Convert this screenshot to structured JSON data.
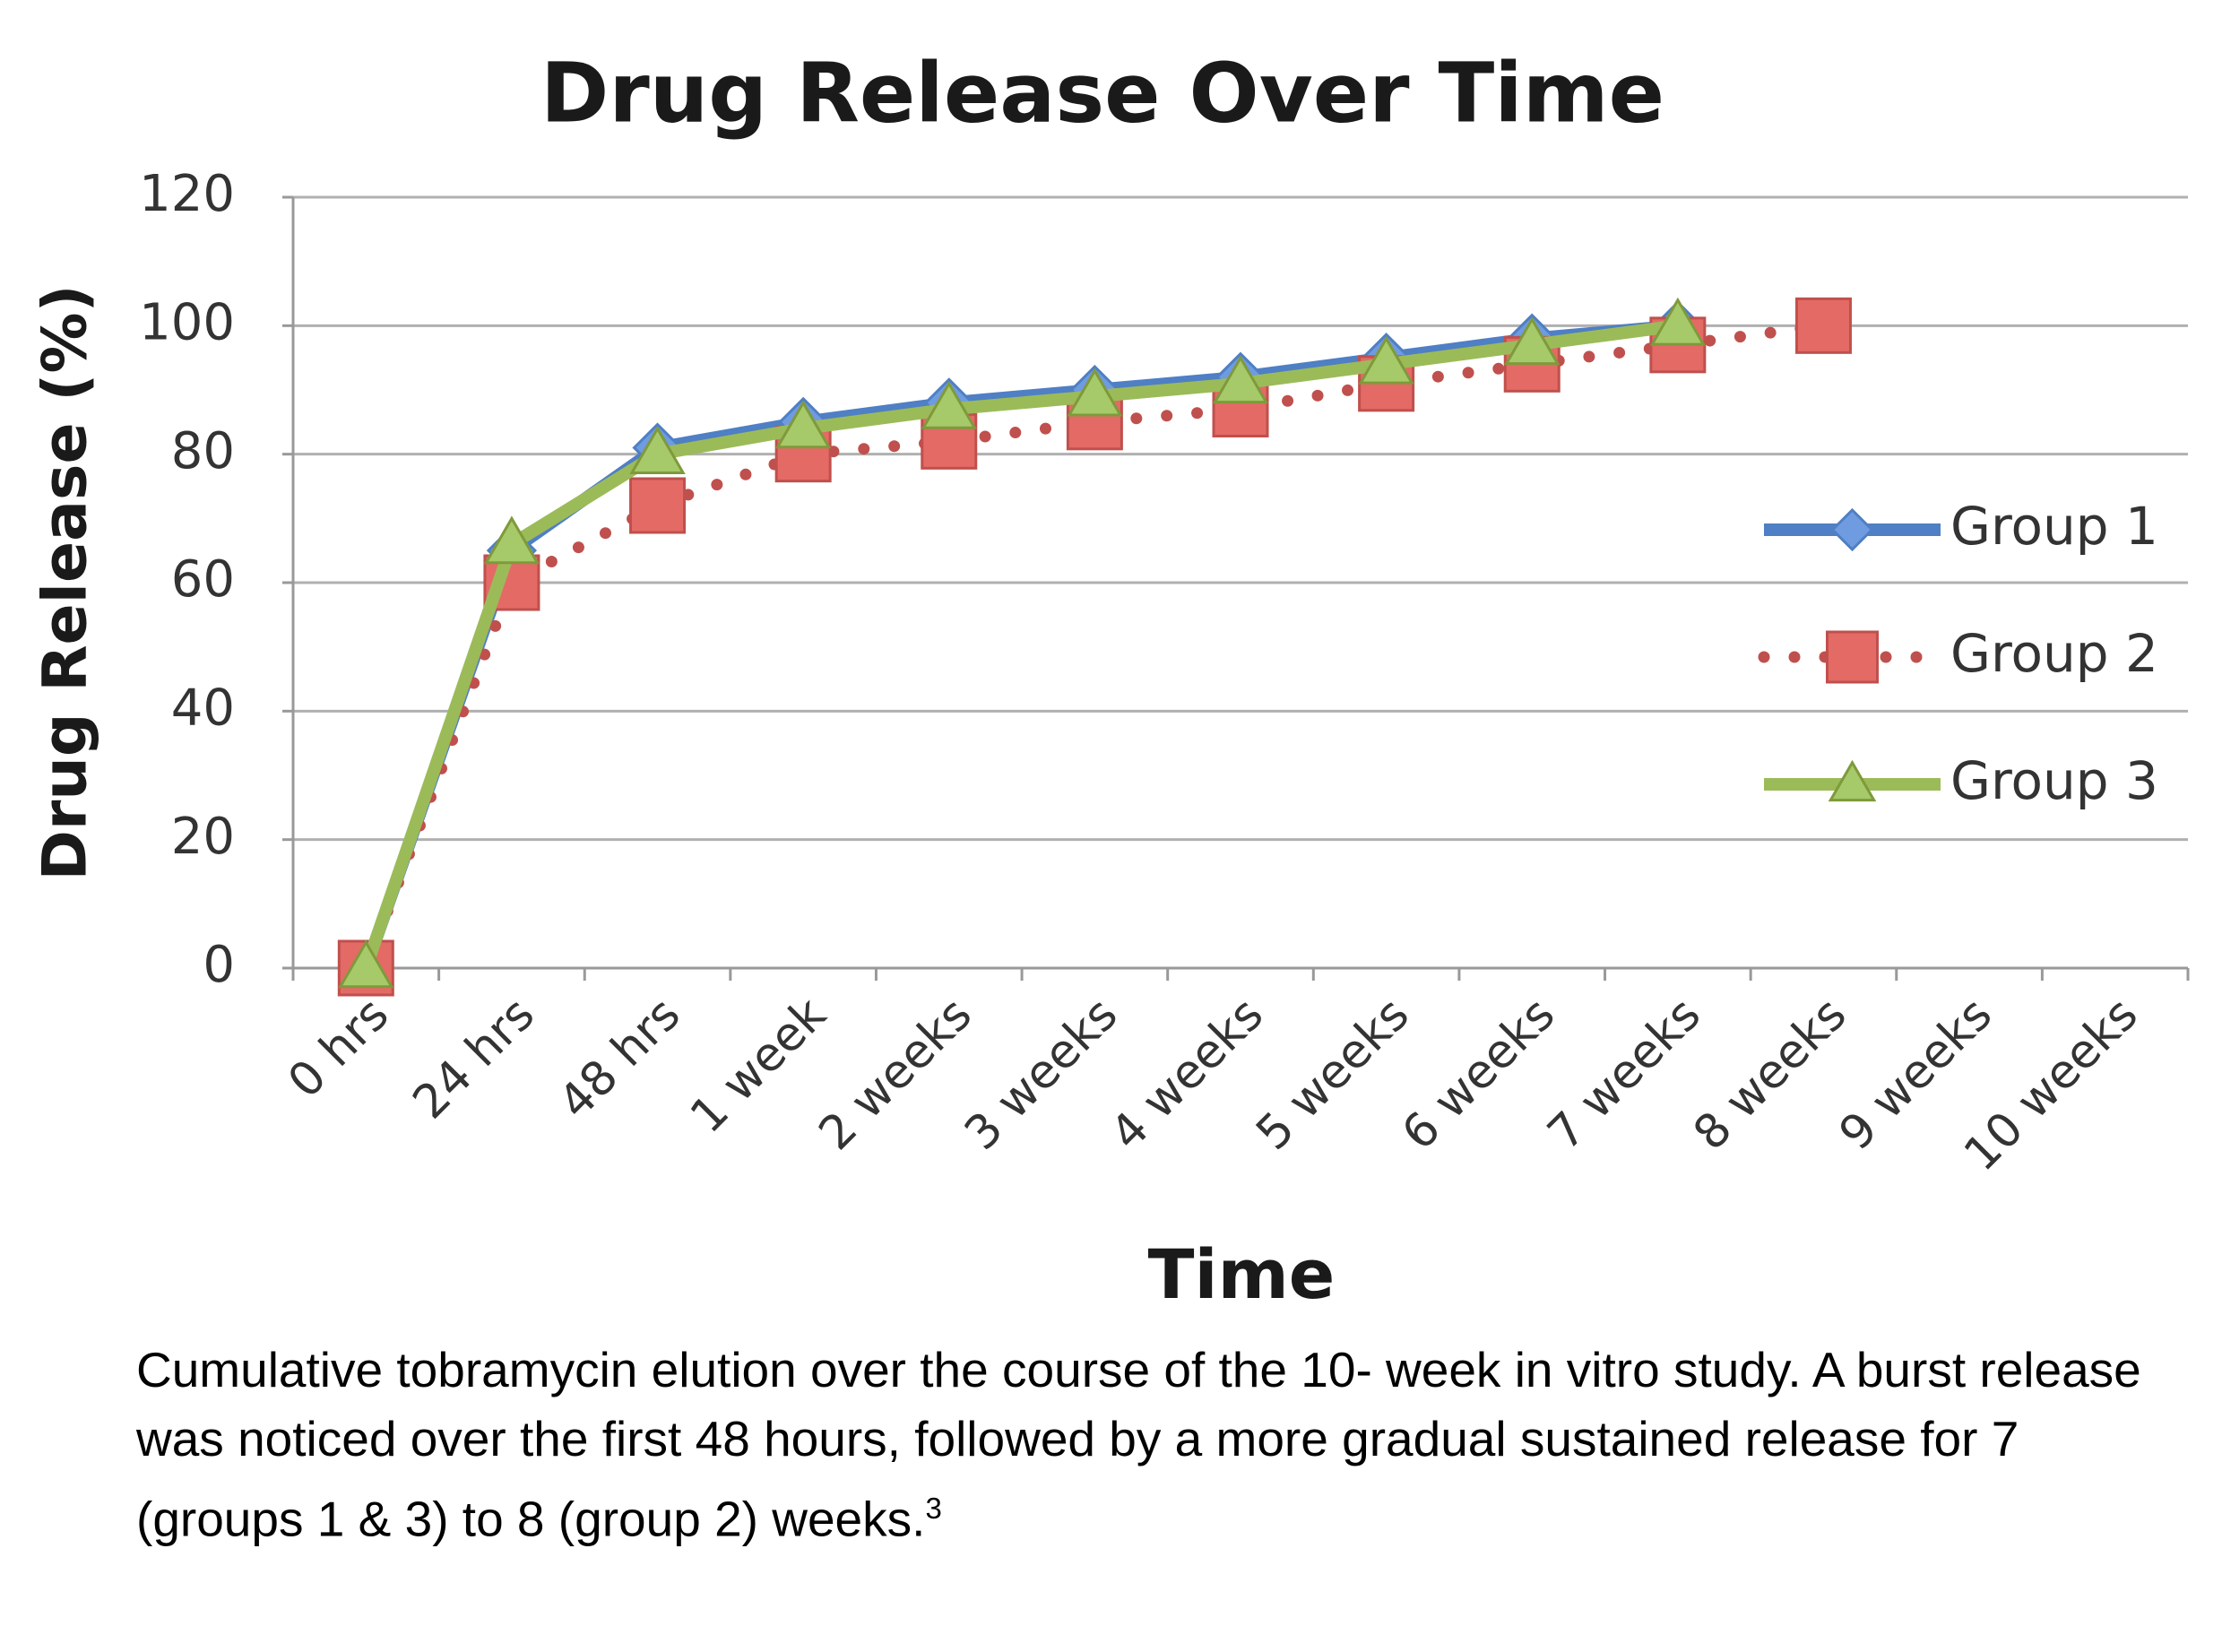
{
  "chart_data": {
    "type": "line",
    "title": "Drug Release Over Time",
    "x_label": "Time",
    "y_label": "Drug Release (%)",
    "categories": [
      "0 hrs",
      "24 hrs",
      "48 hrs",
      "1 week",
      "2 weeks",
      "3 weeks",
      "4 weeks",
      "5 weeks",
      "6 weeks",
      "7 weeks",
      "8 weeks",
      "9 weeks",
      "10 weeks"
    ],
    "series": [
      {
        "name": "Group 1",
        "color": "#4f7fc4",
        "marker": "diamond",
        "dash": "solid",
        "values": [
          0,
          65,
          81,
          85,
          88,
          90,
          92,
          95,
          98,
          100,
          null,
          null,
          null
        ]
      },
      {
        "name": "Group 2",
        "color": "#c0504d",
        "marker": "square",
        "dash": "dotted",
        "values": [
          0,
          60,
          72,
          80,
          82,
          85,
          87,
          91,
          94,
          97,
          100,
          null,
          null
        ]
      },
      {
        "name": "Group 3",
        "color": "#9bbb59",
        "marker": "triangle",
        "dash": "solid",
        "values": [
          0,
          66,
          80,
          84,
          87,
          89,
          91,
          94,
          97,
          100,
          null,
          null,
          null
        ]
      }
    ],
    "ylim": [
      0,
      120
    ],
    "yticks": [
      0,
      20,
      40,
      60,
      80,
      100,
      120
    ],
    "grid": true,
    "legend": "right"
  },
  "caption": {
    "text": "Cumulative tobramycin elution over the course of the 10- week in vitro study. A burst release was noticed over the first 48 hours, followed by a more gradual sustained release for 7 (groups 1 & 3) to 8 (group 2) weeks.",
    "reference": "3"
  }
}
